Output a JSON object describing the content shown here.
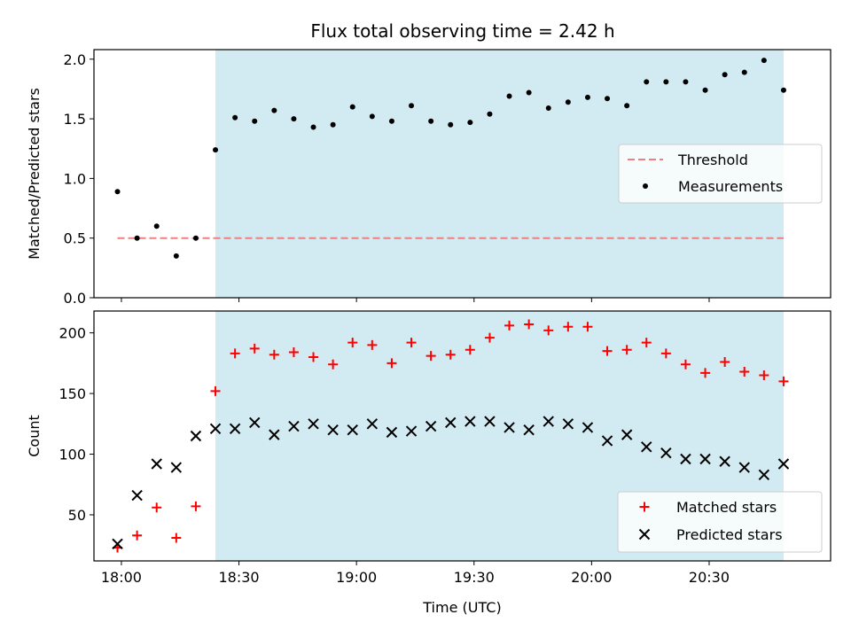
{
  "chart_data": [
    {
      "type": "scatter",
      "title": "Flux total observing time = 2.42 h",
      "xlabel": "",
      "ylabel": "Matched/Predicted stars",
      "xlim": [
        "17:53",
        "21:01"
      ],
      "ylim": [
        0,
        2.08
      ],
      "yticks": [
        "0.0",
        "0.5",
        "1.0",
        "1.5",
        "2.0"
      ],
      "highlight_region": {
        "start": "18:24",
        "end": "20:49",
        "color": "#add8e6"
      },
      "threshold": {
        "name": "Threshold",
        "value": 0.5,
        "start": "17:59",
        "end": "20:49",
        "color": "#f08080"
      },
      "legend": {
        "position": "center-right",
        "entries": [
          "Threshold",
          "Measurements"
        ]
      },
      "series": [
        {
          "name": "Measurements",
          "color": "#000000",
          "times": [
            "17:59",
            "18:04",
            "18:09",
            "18:14",
            "18:19",
            "18:24",
            "18:29",
            "18:34",
            "18:39",
            "18:44",
            "18:49",
            "18:54",
            "18:59",
            "19:04",
            "19:09",
            "19:14",
            "19:19",
            "19:24",
            "19:29",
            "19:34",
            "19:39",
            "19:44",
            "19:49",
            "19:54",
            "19:59",
            "20:04",
            "20:09",
            "20:14",
            "20:19",
            "20:24",
            "20:29",
            "20:34",
            "20:39",
            "20:44",
            "20:49"
          ],
          "values": [
            0.89,
            0.5,
            0.6,
            0.35,
            0.5,
            1.24,
            1.51,
            1.48,
            1.57,
            1.5,
            1.43,
            1.45,
            1.6,
            1.52,
            1.48,
            1.61,
            1.48,
            1.45,
            1.47,
            1.54,
            1.69,
            1.72,
            1.59,
            1.64,
            1.68,
            1.67,
            1.61,
            1.81,
            1.81,
            1.81,
            1.74,
            1.87,
            1.89,
            1.99,
            1.74
          ]
        }
      ]
    },
    {
      "type": "scatter",
      "title": "",
      "xlabel": "Time (UTC)",
      "ylabel": "Count",
      "xlim": [
        "17:53",
        "21:01"
      ],
      "ylim": [
        12,
        218
      ],
      "yticks": [
        "50",
        "100",
        "150",
        "200"
      ],
      "xticks": [
        "18:00",
        "18:30",
        "19:00",
        "19:30",
        "20:00",
        "20:30"
      ],
      "highlight_region": {
        "start": "18:24",
        "end": "20:49",
        "color": "#add8e6"
      },
      "legend": {
        "position": "lower-right",
        "entries": [
          "Matched stars",
          "Predicted stars"
        ]
      },
      "series": [
        {
          "name": "Matched stars",
          "marker": "+",
          "color": "#ff0000",
          "times": [
            "17:59",
            "18:04",
            "18:09",
            "18:14",
            "18:19",
            "18:24",
            "18:29",
            "18:34",
            "18:39",
            "18:44",
            "18:49",
            "18:54",
            "18:59",
            "19:04",
            "19:09",
            "19:14",
            "19:19",
            "19:24",
            "19:29",
            "19:34",
            "19:39",
            "19:44",
            "19:49",
            "19:54",
            "19:59",
            "20:04",
            "20:09",
            "20:14",
            "20:19",
            "20:24",
            "20:29",
            "20:34",
            "20:39",
            "20:44",
            "20:49"
          ],
          "values": [
            23,
            33,
            56,
            31,
            57,
            152,
            183,
            187,
            182,
            184,
            180,
            174,
            192,
            190,
            175,
            192,
            181,
            182,
            186,
            196,
            206,
            207,
            202,
            205,
            205,
            185,
            186,
            192,
            183,
            174,
            167,
            176,
            168,
            165,
            160
          ]
        },
        {
          "name": "Predicted stars",
          "marker": "x",
          "color": "#000000",
          "times": [
            "17:59",
            "18:04",
            "18:09",
            "18:14",
            "18:19",
            "18:24",
            "18:29",
            "18:34",
            "18:39",
            "18:44",
            "18:49",
            "18:54",
            "18:59",
            "19:04",
            "19:09",
            "19:14",
            "19:19",
            "19:24",
            "19:29",
            "19:34",
            "19:39",
            "19:44",
            "19:49",
            "19:54",
            "19:59",
            "20:04",
            "20:09",
            "20:14",
            "20:19",
            "20:24",
            "20:29",
            "20:34",
            "20:39",
            "20:44",
            "20:49"
          ],
          "values": [
            26,
            66,
            92,
            89,
            115,
            121,
            121,
            126,
            116,
            123,
            125,
            120,
            120,
            125,
            118,
            119,
            123,
            126,
            127,
            127,
            122,
            120,
            127,
            125,
            122,
            111,
            116,
            106,
            101,
            96,
            96,
            94,
            89,
            83,
            92
          ]
        }
      ]
    }
  ]
}
